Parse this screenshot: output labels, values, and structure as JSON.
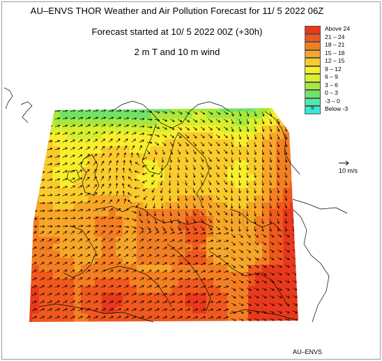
{
  "header": {
    "title": "AU–ENVS THOR Weather and Air Pollution Forecast for 11/ 5 2022  06Z",
    "run": "Forecast started at 10/ 5 2022  00Z (+30h)",
    "field": "2 m T and 10 m wind"
  },
  "legend": {
    "items": [
      {
        "label": "Above   24",
        "color": "#e8391c"
      },
      {
        "label": "21 – 24",
        "color": "#f0581e"
      },
      {
        "label": "18 – 21",
        "color": "#f47e22"
      },
      {
        "label": "15 – 18",
        "color": "#f7a628"
      },
      {
        "label": "12 – 15",
        "color": "#f9cb2c"
      },
      {
        "label": "9 – 12",
        "color": "#f8ee2d"
      },
      {
        "label": "6 – 9",
        "color": "#d6ef2e"
      },
      {
        "label": "3 – 6",
        "color": "#a5e83f"
      },
      {
        "label": "0 – 3",
        "color": "#72e168"
      },
      {
        "label": "-3 – 0",
        "color": "#4ee7ad"
      },
      {
        "label": "Below   -3",
        "color": "#3ee6d4",
        "marker": "S"
      }
    ]
  },
  "wind_scale": {
    "label": "10 m/s"
  },
  "credit": "AU–ENVS",
  "colors": {
    "land_outline": "#000000",
    "border": "#888888"
  }
}
